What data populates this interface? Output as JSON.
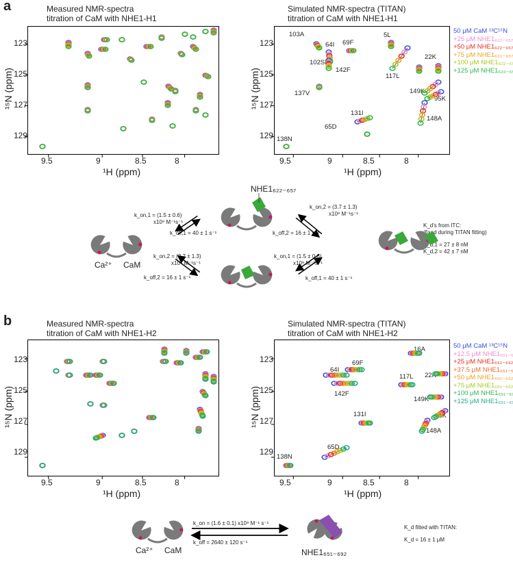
{
  "panel_a": {
    "letter": "a",
    "measured_title": [
      "Measured NMR-spectra",
      "titration of CaM with NHE1-H1"
    ],
    "simulated_title": [
      "Simulated NMR-spectra (TITAN)",
      "titration of CaM with NHE1-H1"
    ],
    "yticks": [
      "123",
      "125",
      "127",
      "129"
    ],
    "xticks": [
      "9.5",
      "9",
      "8.5",
      "8"
    ],
    "ylabel": "¹⁵N (ppm)",
    "xlabel": "¹H (ppm)",
    "legend": [
      {
        "text": "50 μM CaM ¹³C¹⁵N",
        "color": "#3b4fd6"
      },
      {
        "text": "+25 μM NHE1₆₂₂₋₆₅₇",
        "color": "#e98bd6"
      },
      {
        "text": "+50 μM NHE1₆₂₂₋₆₅₇",
        "color": "#e0301e"
      },
      {
        "text": "+75 μM NHE1₆₂₂₋₆₅₇",
        "color": "#f0a020"
      },
      {
        "text": "+100 μM NHE1₆₂₂₋₆₅₇",
        "color": "#a9c820"
      },
      {
        "text": "+125 μM NHE1₆₂₂₋₆₅₇",
        "color": "#2eb84a"
      }
    ],
    "peak_labels": [
      "103A",
      "64I",
      "69F",
      "5L",
      "22K",
      "102SI",
      "142F",
      "117L",
      "137V",
      "149K",
      "95K",
      "131I",
      "148A",
      "65D",
      "138N"
    ],
    "scheme": {
      "ligand": "NHE1₆₂₂₋₆₅₇",
      "kon1_top": "k_on,1 = (1.5 ± 0.6)",
      "kon1_top_unit": "x10⁹ M⁻¹s⁻¹",
      "koff1_top": "k_off,1 = 40 ± 1 s⁻¹",
      "kon2_top": "k_on,2 = (3.7 ± 1.3)",
      "kon2_top_unit": "x10⁸ M⁻¹s⁻¹",
      "koff2_top": "k_off,2 = 16 ± 1 s⁻¹",
      "kon2_bottom": "k_on,2 = (3.7 ± 1.3)",
      "kon2_bottom_unit": "x10⁸ M⁻¹s⁻¹",
      "koff2_bottom": "k_off,2 = 16 ± 1 s⁻¹",
      "kon1_bottom": "k_on,1 = (1.5 ± 0.6)",
      "kon1_bottom_unit": "x10⁹ M⁻¹s⁻¹",
      "koff1_bottom": "k_off,1 = 40 ± 1 s⁻¹",
      "ca_label": "Ca²⁺",
      "cam_label": "CaM",
      "itc_lines": [
        "K_d's from ITC:",
        "(fixed during TITAN fitting)",
        "K_d,1 = 27 ± 8 nM",
        "K_d,2 = 42 ± 7 nM"
      ]
    }
  },
  "panel_b": {
    "letter": "b",
    "measured_title": [
      "Measured NMR-spectra",
      "titration of CaM with NHE1-H2"
    ],
    "simulated_title": [
      "Simulated NMR-spectra (TITAN)",
      "titration of CaM with NHE1-H2"
    ],
    "yticks": [
      "123",
      "125",
      "127",
      "129"
    ],
    "xticks": [
      "9.5",
      "9",
      "8.5",
      "8"
    ],
    "ylabel": "¹⁵N (ppm)",
    "xlabel": "¹H (ppm)",
    "legend": [
      {
        "text": "50 μM CaM ¹³C¹⁵N",
        "color": "#3b4fd6"
      },
      {
        "text": "+12.5 μM NHE1₆₅₁₋₆₉₂",
        "color": "#e98bd6"
      },
      {
        "text": "+25 μM NHE1₆₅₁₋₆₉₂",
        "color": "#e0301e"
      },
      {
        "text": "+37.5 μM NHE1₆₅₁₋₆₉₂",
        "color": "#ea6a2a"
      },
      {
        "text": "+50 μM NHE1₆₅₁₋₆₉₂",
        "color": "#f0a020"
      },
      {
        "text": "+75 μM NHE1₆₅₁₋₆₉₂",
        "color": "#a9c820"
      },
      {
        "text": "+100 μM NHE1₆₅₁₋₆₉₂",
        "color": "#2eb84a"
      },
      {
        "text": "+125 μM NHE1₆₅₁₋₆₉₂",
        "color": "#22a88a"
      }
    ],
    "peak_labels": [
      "16A",
      "69F",
      "64I",
      "117L",
      "22K",
      "142F",
      "149K",
      "95K",
      "148A",
      "131I",
      "65D",
      "138N"
    ],
    "scheme": {
      "kon": "k_on = (1.6 ± 0.1) x10⁸ M⁻¹ s⁻¹",
      "koff": "k_off = 2640 ± 120 s⁻¹",
      "ca_label": "Ca²⁺",
      "cam_label": "CaM",
      "ligand": "NHE1₆₅₁₋₆₉₂",
      "fit_lines": [
        "K_d fitted with TITAN:",
        "K_d = 16 ± 1 μM"
      ]
    }
  },
  "colors": {
    "cam": "#7a7a7a",
    "ligand": "#3aa83a",
    "ligand_b": "#8a4fb0",
    "ca": "#c2185b"
  }
}
